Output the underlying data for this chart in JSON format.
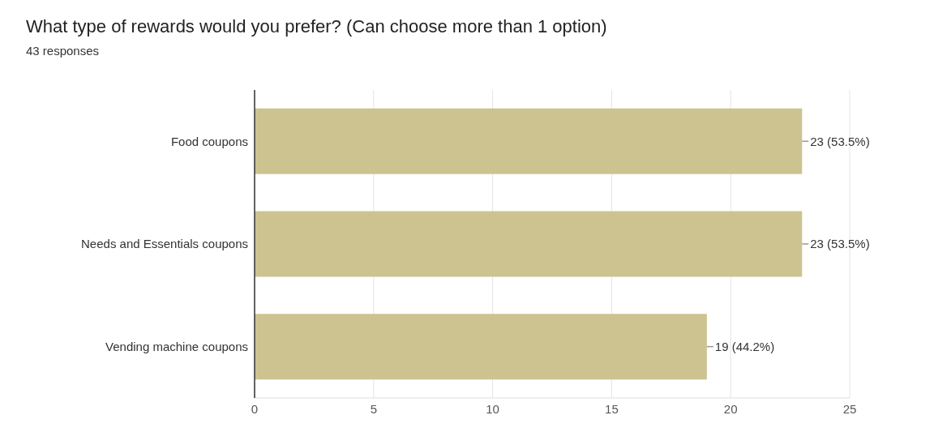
{
  "chart_data": {
    "type": "bar",
    "orientation": "horizontal",
    "title": "What type of rewards would you prefer? (Can choose more than 1 option)",
    "subtitle": "43 responses",
    "categories": [
      "Food coupons",
      "Needs and Essentials coupons",
      "Vending machine coupons"
    ],
    "values": [
      23,
      23,
      19
    ],
    "value_labels": [
      "23 (53.5%)",
      "23 (53.5%)",
      "19 (44.2%)"
    ],
    "color": "#cdc391",
    "xlim": [
      0,
      25
    ],
    "xticks": [
      0,
      5,
      10,
      15,
      20,
      25
    ],
    "grid": "x"
  }
}
